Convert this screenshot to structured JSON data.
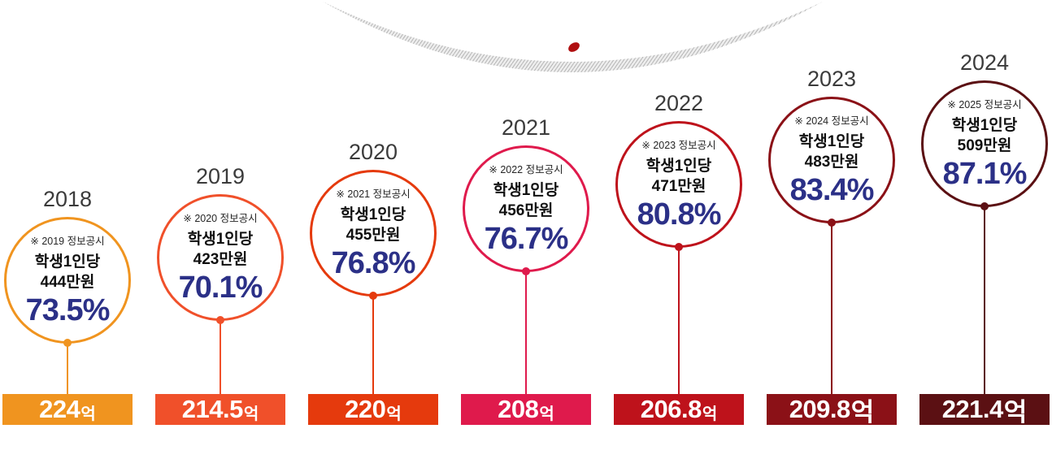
{
  "decoration": {
    "dot_color": "#B00F10",
    "hatch_fill": "#EDEDED",
    "hatch_line": "#8F8F8F"
  },
  "percent_color": "#2B3087",
  "columns": [
    {
      "year": "2018",
      "note": "※ 2019 정보공시",
      "per_student_line1": "학생1인당",
      "per_student_line2": "444만원",
      "percent": "73.5%",
      "bar_value": "224",
      "bar_unit": "억",
      "unit_small": true,
      "color": "#F0941F"
    },
    {
      "year": "2019",
      "note": "※ 2020 정보공시",
      "per_student_line1": "학생1인당",
      "per_student_line2": "423만원",
      "percent": "70.1%",
      "bar_value": "214.5",
      "bar_unit": "억",
      "unit_small": true,
      "color": "#F0502A"
    },
    {
      "year": "2020",
      "note": "※ 2021 정보공시",
      "per_student_line1": "학생1인당",
      "per_student_line2": "455만원",
      "percent": "76.8%",
      "bar_value": "220",
      "bar_unit": "억",
      "unit_small": true,
      "color": "#E53A0D"
    },
    {
      "year": "2021",
      "note": "※ 2022 정보공시",
      "per_student_line1": "학생1인당",
      "per_student_line2": "456만원",
      "percent": "76.7%",
      "bar_value": "208",
      "bar_unit": "억",
      "unit_small": true,
      "color": "#DF1A4C"
    },
    {
      "year": "2022",
      "note": "※ 2023 정보공시",
      "per_student_line1": "학생1인당",
      "per_student_line2": "471만원",
      "percent": "80.8%",
      "bar_value": "206.8",
      "bar_unit": "억",
      "unit_small": true,
      "color": "#BE121B"
    },
    {
      "year": "2023",
      "note": "※ 2024 정보공시",
      "per_student_line1": "학생1인당",
      "per_student_line2": "483만원",
      "percent": "83.4%",
      "bar_value": "209.8",
      "bar_unit": "억",
      "unit_small": false,
      "color": "#8B1117"
    },
    {
      "year": "2024",
      "note": "※ 2025 정보공시",
      "per_student_line1": "학생1인당",
      "per_student_line2": "509만원",
      "percent": "87.1%",
      "bar_value": "221.4",
      "bar_unit": "억",
      "unit_small": false,
      "color": "#5B1013"
    }
  ],
  "chart_data": {
    "type": "bar",
    "categories": [
      "2018",
      "2019",
      "2020",
      "2021",
      "2022",
      "2023",
      "2024"
    ],
    "series": [
      {
        "name": "억",
        "values": [
          224,
          214.5,
          220,
          208,
          206.8,
          209.8,
          221.4
        ]
      },
      {
        "name": "학생1인당 만원",
        "values": [
          444,
          423,
          455,
          456,
          471,
          483,
          509
        ]
      },
      {
        "name": "%",
        "values": [
          73.5,
          70.1,
          76.8,
          76.7,
          80.8,
          83.4,
          87.1
        ]
      }
    ],
    "annotations": [
      "※ 2019 정보공시",
      "※ 2020 정보공시",
      "※ 2021 정보공시",
      "※ 2022 정보공시",
      "※ 2023 정보공시",
      "※ 2024 정보공시",
      "※ 2025 정보공시"
    ],
    "legend_position": "none",
    "grid": false
  }
}
